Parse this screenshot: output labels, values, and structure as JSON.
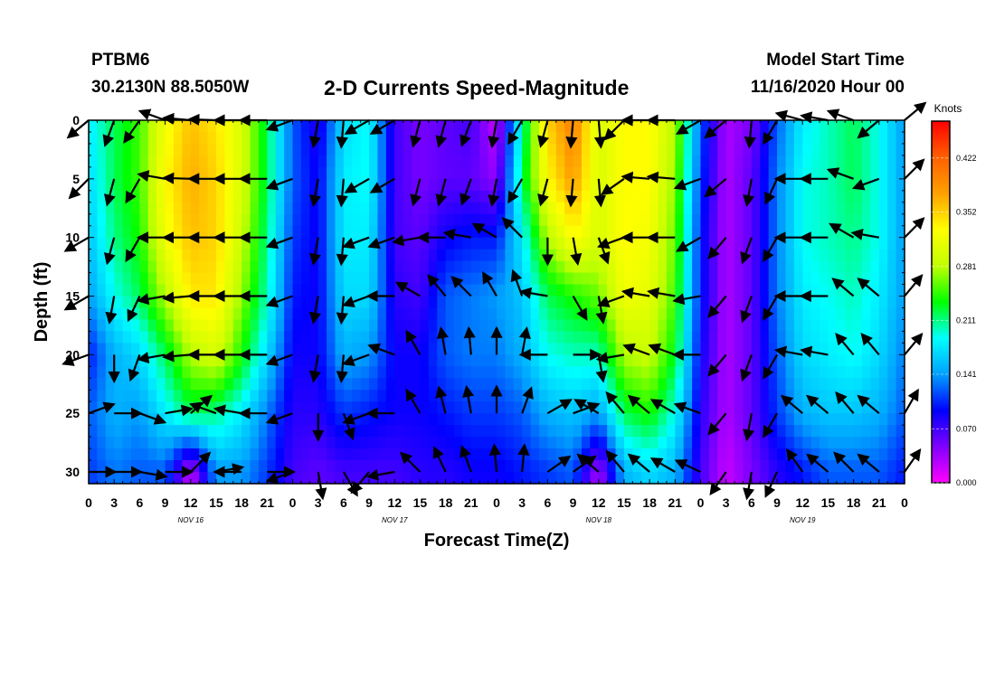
{
  "header": {
    "station_id": "PTBM6",
    "station_coords": "30.2130N 88.5050W",
    "model_label": "Model Start Time",
    "model_time": "11/16/2020 Hour 00"
  },
  "chart_data": {
    "type": "heatmap",
    "title": "2-D Currents Speed-Magnitude",
    "xlabel": "Forecast Time(Z)",
    "ylabel": "Depth (ft)",
    "x_tick_labels": [
      "0",
      "3",
      "6",
      "9",
      "12",
      "15",
      "18",
      "21",
      "0",
      "3",
      "6",
      "9",
      "12",
      "15",
      "18",
      "21",
      "0",
      "3",
      "6",
      "9",
      "12",
      "15",
      "18",
      "21",
      "0",
      "3",
      "6",
      "9",
      "12",
      "15",
      "18",
      "21",
      "0"
    ],
    "xlim_hours": [
      0,
      96
    ],
    "day_labels": [
      {
        "label": "NOV 16",
        "hour": 12
      },
      {
        "label": "NOV 17",
        "hour": 36
      },
      {
        "label": "NOV 18",
        "hour": 60
      },
      {
        "label": "NOV 19",
        "hour": 84
      }
    ],
    "ylim_ft": [
      0,
      31
    ],
    "y_tick_values": [
      0,
      5,
      10,
      15,
      20,
      25,
      30
    ],
    "y_tick_labels": [
      "0",
      "5",
      "10",
      "15",
      "20",
      "25",
      "30"
    ],
    "colorbar": {
      "title": "Knots",
      "range": [
        0.0,
        0.47
      ],
      "tick_values": [
        0.0,
        0.07,
        0.141,
        0.211,
        0.281,
        0.352,
        0.422
      ],
      "tick_labels": [
        "0.000",
        "0.070",
        "0.141",
        "0.211",
        "0.281",
        "0.352",
        "0.422"
      ],
      "colors": [
        "#ff00ff",
        "#8000ff",
        "#0000ff",
        "#00a0ff",
        "#00ffff",
        "#00ff00",
        "#c0ff00",
        "#ffff00",
        "#ffa000",
        "#ff6000",
        "#ff0000"
      ]
    },
    "speed_field": {
      "hours": [
        0,
        3,
        6,
        9,
        12,
        15,
        18,
        21,
        24,
        27,
        30,
        33,
        36,
        39,
        42,
        45,
        48,
        51,
        54,
        57,
        60,
        63,
        66,
        69,
        72,
        75,
        78,
        81,
        84,
        87,
        90,
        93,
        96
      ],
      "depths_ft": [
        0,
        5,
        10,
        15,
        20,
        25,
        30
      ],
      "values_knots": [
        [
          0.18,
          0.22,
          0.25,
          0.32,
          0.36,
          0.34,
          0.3,
          0.22,
          0.12,
          0.08,
          0.17,
          0.19,
          0.07,
          0.05,
          0.06,
          0.07,
          0.02,
          0.2,
          0.35,
          0.4,
          0.3,
          0.33,
          0.33,
          0.28,
          0.12,
          0.03,
          0.05,
          0.12,
          0.18,
          0.2,
          0.22,
          0.19,
          0.14
        ],
        [
          0.17,
          0.22,
          0.25,
          0.33,
          0.37,
          0.35,
          0.3,
          0.22,
          0.12,
          0.09,
          0.18,
          0.19,
          0.07,
          0.05,
          0.06,
          0.06,
          0.04,
          0.22,
          0.33,
          0.38,
          0.3,
          0.33,
          0.33,
          0.27,
          0.11,
          0.03,
          0.06,
          0.13,
          0.19,
          0.2,
          0.22,
          0.19,
          0.14
        ],
        [
          0.16,
          0.21,
          0.24,
          0.32,
          0.36,
          0.35,
          0.29,
          0.21,
          0.11,
          0.09,
          0.18,
          0.18,
          0.07,
          0.06,
          0.09,
          0.1,
          0.1,
          0.18,
          0.28,
          0.33,
          0.3,
          0.33,
          0.32,
          0.26,
          0.1,
          0.03,
          0.06,
          0.13,
          0.19,
          0.2,
          0.21,
          0.19,
          0.14
        ],
        [
          0.14,
          0.19,
          0.22,
          0.28,
          0.34,
          0.34,
          0.27,
          0.2,
          0.1,
          0.09,
          0.17,
          0.17,
          0.08,
          0.07,
          0.12,
          0.13,
          0.14,
          0.16,
          0.22,
          0.24,
          0.26,
          0.32,
          0.31,
          0.25,
          0.1,
          0.03,
          0.06,
          0.13,
          0.18,
          0.19,
          0.2,
          0.18,
          0.14
        ],
        [
          0.1,
          0.15,
          0.17,
          0.22,
          0.28,
          0.3,
          0.24,
          0.17,
          0.09,
          0.09,
          0.15,
          0.14,
          0.09,
          0.09,
          0.12,
          0.13,
          0.13,
          0.15,
          0.19,
          0.2,
          0.2,
          0.28,
          0.29,
          0.23,
          0.09,
          0.03,
          0.06,
          0.12,
          0.17,
          0.18,
          0.19,
          0.17,
          0.13
        ],
        [
          0.12,
          0.15,
          0.14,
          0.18,
          0.22,
          0.21,
          0.18,
          0.13,
          0.08,
          0.08,
          0.11,
          0.1,
          0.09,
          0.09,
          0.1,
          0.11,
          0.11,
          0.12,
          0.15,
          0.16,
          0.14,
          0.22,
          0.24,
          0.19,
          0.08,
          0.03,
          0.06,
          0.11,
          0.15,
          0.16,
          0.16,
          0.15,
          0.12
        ],
        [
          0.11,
          0.13,
          0.12,
          0.12,
          0.02,
          0.14,
          0.14,
          0.11,
          0.07,
          0.06,
          0.07,
          0.07,
          0.07,
          0.08,
          0.08,
          0.09,
          0.09,
          0.1,
          0.11,
          0.12,
          0.03,
          0.15,
          0.17,
          0.15,
          0.07,
          0.02,
          0.05,
          0.08,
          0.1,
          0.12,
          0.12,
          0.12,
          0.1
        ]
      ]
    },
    "vectors": {
      "hours": [
        0,
        3,
        6,
        9,
        12,
        15,
        18,
        21,
        24,
        27,
        30,
        33,
        36,
        39,
        42,
        45,
        48,
        51,
        54,
        57,
        60,
        63,
        66,
        69,
        72,
        75,
        78,
        81,
        84,
        87,
        90,
        93,
        96
      ],
      "depths_ft": [
        0,
        5,
        10,
        15,
        20,
        25,
        30
      ],
      "direction_deg_from_east": [
        [
          220,
          250,
          235,
          160,
          175,
          178,
          180,
          180,
          200,
          260,
          265,
          210,
          210,
          255,
          255,
          250,
          260,
          240,
          255,
          265,
          275,
          225,
          180,
          180,
          210,
          220,
          265,
          240,
          165,
          170,
          160,
          220,
          40
        ],
        [
          225,
          255,
          240,
          170,
          178,
          180,
          180,
          180,
          200,
          260,
          265,
          210,
          210,
          255,
          255,
          250,
          260,
          240,
          255,
          265,
          275,
          215,
          175,
          175,
          200,
          220,
          260,
          245,
          180,
          180,
          160,
          200,
          45
        ],
        [
          210,
          255,
          240,
          180,
          180,
          180,
          180,
          180,
          200,
          260,
          265,
          200,
          200,
          190,
          180,
          170,
          150,
          135,
          270,
          280,
          290,
          200,
          180,
          180,
          210,
          230,
          250,
          240,
          180,
          180,
          150,
          170,
          45
        ],
        [
          210,
          260,
          245,
          190,
          185,
          180,
          180,
          180,
          200,
          260,
          265,
          200,
          180,
          150,
          130,
          135,
          120,
          110,
          170,
          300,
          280,
          200,
          170,
          170,
          190,
          230,
          250,
          240,
          180,
          180,
          140,
          140,
          50
        ],
        [
          200,
          270,
          250,
          190,
          185,
          180,
          180,
          180,
          200,
          260,
          265,
          200,
          160,
          120,
          100,
          95,
          90,
          80,
          180,
          0,
          280,
          190,
          160,
          160,
          180,
          230,
          250,
          240,
          170,
          170,
          130,
          130,
          50
        ],
        [
          20,
          0,
          340,
          10,
          40,
          160,
          170,
          180,
          200,
          270,
          290,
          200,
          180,
          120,
          105,
          100,
          90,
          70,
          30,
          20,
          150,
          130,
          140,
          150,
          160,
          230,
          260,
          240,
          140,
          140,
          130,
          140,
          60
        ],
        [
          0,
          0,
          350,
          0,
          45,
          10,
          180,
          0,
          200,
          280,
          300,
          230,
          190,
          135,
          115,
          110,
          95,
          85,
          35,
          35,
          140,
          130,
          140,
          150,
          155,
          235,
          260,
          245,
          125,
          140,
          135,
          140,
          55
        ]
      ],
      "arrow_length_scale": 0.75
    }
  }
}
